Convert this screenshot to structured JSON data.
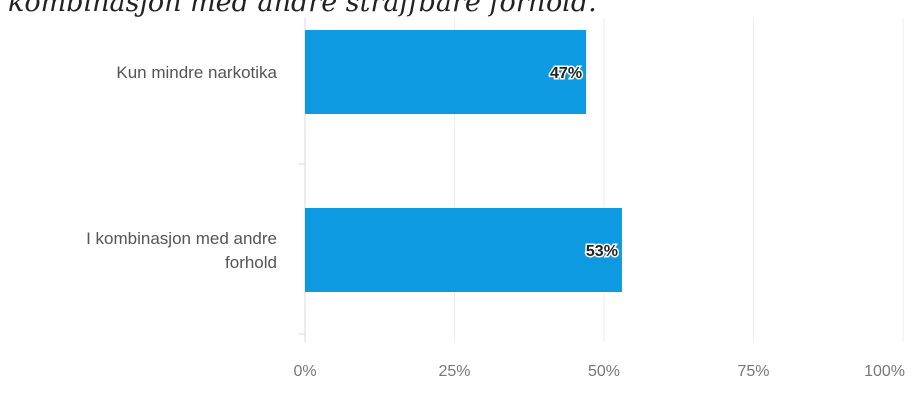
{
  "caption": "kombinasjon med andre straffbare forhold.",
  "colors": {
    "bar": "#0d9ae0",
    "gridline": "#ececec",
    "axis_line": "#d8d8d8",
    "category_text": "#555555",
    "tick_text": "#777777",
    "data_label": "#222222"
  },
  "chart_data": {
    "type": "bar",
    "orientation": "horizontal",
    "categories": [
      "Kun mindre narkotika",
      "I kombinasjon med andre forhold"
    ],
    "category_label_lines": [
      [
        "Kun mindre narkotika"
      ],
      [
        "I kombinasjon med andre",
        "forhold"
      ]
    ],
    "values": [
      47,
      53
    ],
    "data_labels": [
      "47%",
      "53%"
    ],
    "xlim": [
      0,
      100
    ],
    "x_ticks": [
      0,
      25,
      50,
      75,
      100
    ],
    "x_tick_labels": [
      "0%",
      "25%",
      "50%",
      "75%",
      "100%"
    ],
    "grid": true,
    "legend": "none"
  }
}
